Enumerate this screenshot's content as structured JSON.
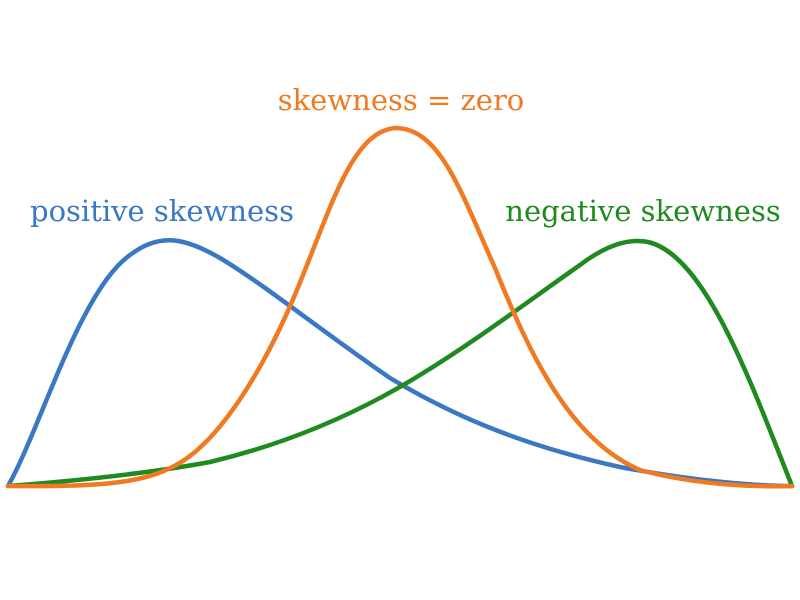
{
  "diagram": {
    "curves": [
      {
        "id": "positive",
        "label": "positive skewness",
        "color": "#3a78c3"
      },
      {
        "id": "zero",
        "label": "skewness = zero",
        "color": "#f07a22"
      },
      {
        "id": "negative",
        "label": "negative skewness",
        "color": "#1f8a1f"
      }
    ]
  }
}
